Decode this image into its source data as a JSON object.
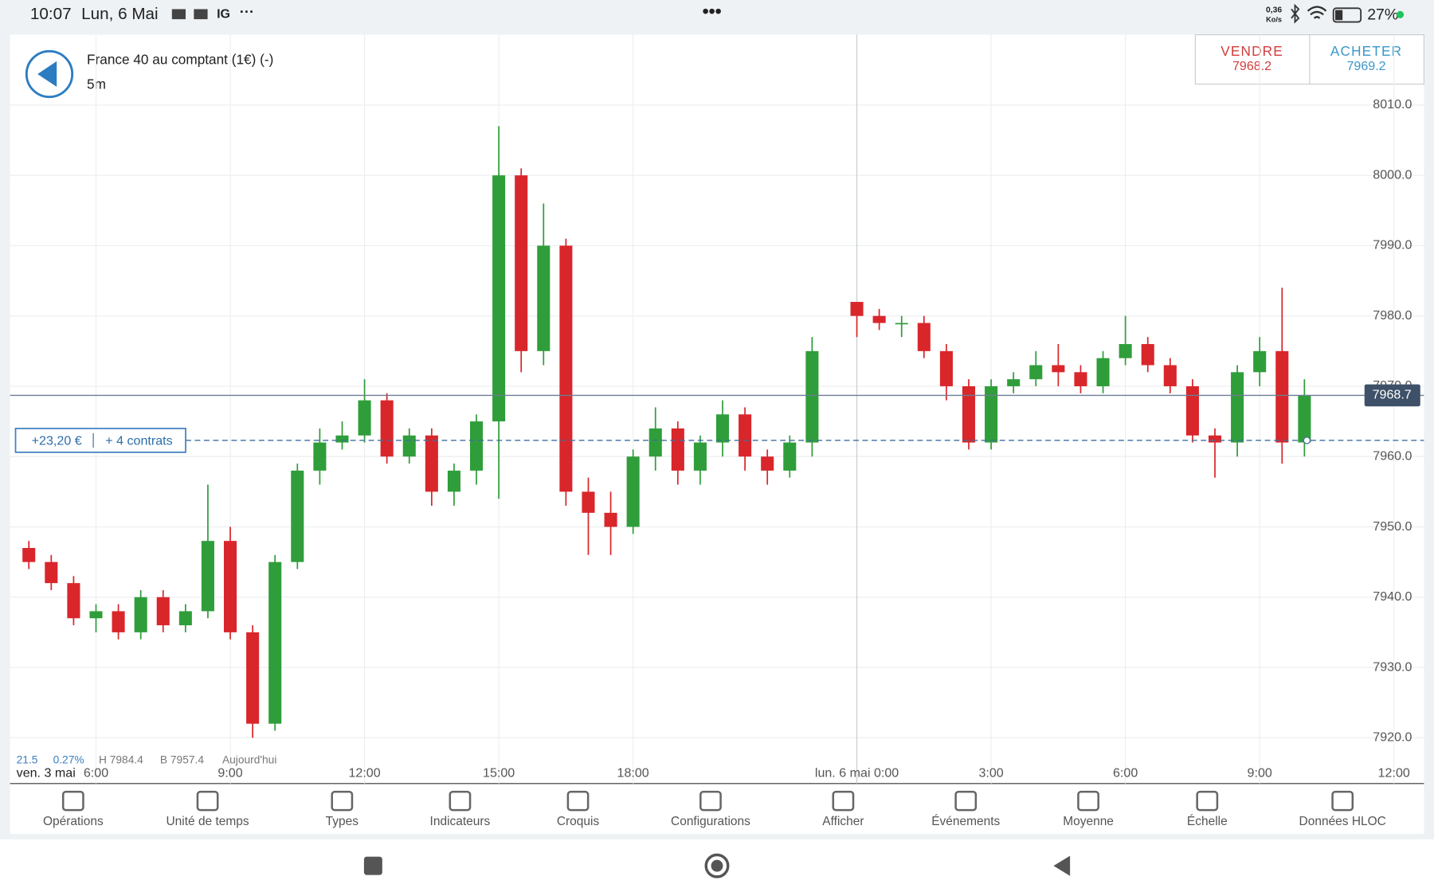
{
  "status_bar": {
    "time": "10:07",
    "date": "Lun, 6 Mai",
    "app": "IG",
    "network": "0,36",
    "network_unit": "Ko/s",
    "battery": "27%"
  },
  "header": {
    "instrument": "France 40 au comptant (1€) (-)",
    "timeframe": "5m",
    "sell_label": "VENDRE",
    "sell_price": "7968.2",
    "buy_label": "ACHETER",
    "buy_price": "7969.2"
  },
  "chart_data": {
    "type": "candlestick",
    "x": [
      4.5,
      5,
      5.5,
      6,
      6.5,
      7,
      7.5,
      8,
      8.5,
      9,
      9.5,
      10,
      10.5,
      11,
      11.5,
      12,
      12.5,
      13,
      13.5,
      14,
      14.5,
      15,
      15.5,
      16,
      16.5,
      17,
      17.5,
      18,
      18.5,
      19,
      19.5,
      20,
      20.5,
      21,
      21.5,
      22,
      23,
      23.5,
      24,
      24.5,
      25,
      25.5,
      26,
      26.5,
      27,
      27.5,
      28,
      28.5,
      29,
      29.5,
      30,
      30.5,
      31,
      31.5,
      32,
      32.5,
      33
    ],
    "open": [
      7947,
      7945,
      7942,
      7937,
      7938,
      7935,
      7940,
      7936,
      7938,
      7948,
      7935,
      7922,
      7945,
      7958,
      7962,
      7963,
      7968,
      7960,
      7963,
      7955,
      7958,
      7965,
      8000,
      7975,
      7990,
      7955,
      7952,
      7950,
      7960,
      7964,
      7958,
      7962,
      7966,
      7960,
      7958,
      7962,
      7982,
      7980,
      7979,
      7979,
      7975,
      7970,
      7962,
      7970,
      7971,
      7973,
      7972,
      7970,
      7974,
      7976,
      7973,
      7970,
      7963,
      7962,
      7972,
      7975,
      7962
    ],
    "high": [
      7948,
      7946,
      7943,
      7939,
      7939,
      7941,
      7941,
      7939,
      7956,
      7950,
      7936,
      7946,
      7959,
      7964,
      7965,
      7971,
      7969,
      7964,
      7964,
      7959,
      7966,
      8007,
      8001,
      7996,
      7991,
      7957,
      7955,
      7961,
      7967,
      7965,
      7963,
      7968,
      7967,
      7961,
      7963,
      7977,
      7982,
      7981,
      7980,
      7980,
      7976,
      7971,
      7971,
      7972,
      7975,
      7976,
      7973,
      7975,
      7980,
      7977,
      7974,
      7971,
      7964,
      7973,
      7977,
      7984,
      7971
    ],
    "low": [
      7944,
      7941,
      7936,
      7935,
      7934,
      7934,
      7935,
      7935,
      7937,
      7934,
      7920,
      7921,
      7944,
      7956,
      7961,
      7962,
      7959,
      7959,
      7953,
      7953,
      7956,
      7954,
      7972,
      7973,
      7953,
      7946,
      7946,
      7949,
      7958,
      7956,
      7956,
      7960,
      7958,
      7956,
      7957,
      7960,
      7977,
      7978,
      7977,
      7974,
      7968,
      7961,
      7961,
      7969,
      7970,
      7970,
      7969,
      7969,
      7973,
      7972,
      7969,
      7962,
      7957,
      7960,
      7970,
      7959,
      7960
    ],
    "close": [
      7945,
      7942,
      7937,
      7938,
      7935,
      7940,
      7936,
      7938,
      7948,
      7935,
      7922,
      7945,
      7958,
      7962,
      7963,
      7968,
      7960,
      7963,
      7955,
      7958,
      7965,
      8000,
      7975,
      7990,
      7955,
      7952,
      7950,
      7960,
      7964,
      7958,
      7962,
      7966,
      7960,
      7958,
      7962,
      7975,
      7980,
      7979,
      7979,
      7975,
      7970,
      7962,
      7970,
      7971,
      7973,
      7972,
      7970,
      7974,
      7976,
      7973,
      7970,
      7963,
      7962,
      7972,
      7975,
      7962,
      7968.7
    ],
    "up_color": "#2f9e3a",
    "down_color": "#d9262b",
    "xlim": [
      4.08,
      35.67
    ],
    "xticks": [
      {
        "value": 6,
        "label": "6:00"
      },
      {
        "value": 9,
        "label": "9:00"
      },
      {
        "value": 12,
        "label": "12:00"
      },
      {
        "value": 15,
        "label": "15:00"
      },
      {
        "value": 18,
        "label": "18:00"
      },
      {
        "value": 23,
        "label": "lun. 6 mai 0:00"
      },
      {
        "value": 26,
        "label": "3:00"
      },
      {
        "value": 29,
        "label": "6:00"
      },
      {
        "value": 32,
        "label": "9:00"
      },
      {
        "value": 35,
        "label": "12:00"
      }
    ],
    "ylim": [
      7917,
      8020
    ],
    "yticks": [
      {
        "value": 7920,
        "label": "7920.0"
      },
      {
        "value": 7930,
        "label": "7930.0"
      },
      {
        "value": 7940,
        "label": "7940.0"
      },
      {
        "value": 7950,
        "label": "7950.0"
      },
      {
        "value": 7960,
        "label": "7960.0"
      },
      {
        "value": 7970,
        "label": "7970.0"
      },
      {
        "value": 7980,
        "label": "7980.0"
      },
      {
        "value": 7990,
        "label": "7990.0"
      },
      {
        "value": 8000,
        "label": "8000.0"
      },
      {
        "value": 8010,
        "label": "8010.0"
      }
    ],
    "grid": true,
    "date_label": "ven. 3 mai",
    "last_price": 7968.7,
    "position": {
      "level": 7962.3,
      "pnl": "+23,20 €",
      "size": "+ 4 contrats"
    },
    "info": [
      "21.5",
      "0.27%",
      "H 7984.4",
      "B 7957.4",
      "Aujourd'hui"
    ]
  },
  "toolbar": [
    "Opérations",
    "Unité de temps",
    "Types",
    "Indicateurs",
    "Croquis",
    "Configurations",
    "Afficher",
    "Événements",
    "Moyenne",
    "Échelle",
    "Données HLOC"
  ]
}
